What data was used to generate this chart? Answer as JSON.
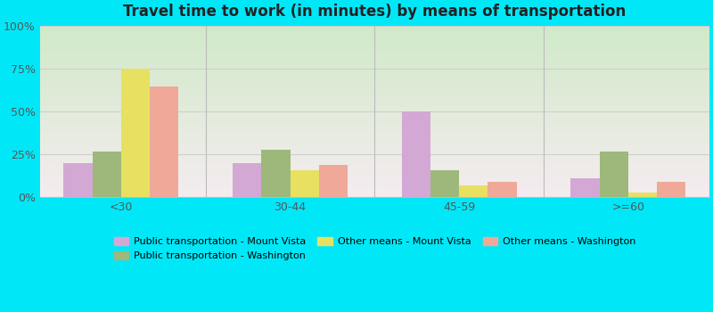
{
  "title": "Travel time to work (in minutes) by means of transportation",
  "categories": [
    "<30",
    "30-44",
    "45-59",
    ">=60"
  ],
  "series": [
    {
      "name": "Public transportation - Mount Vista",
      "color": "#d4a8d4",
      "values": [
        20,
        20,
        50,
        11
      ]
    },
    {
      "name": "Public transportation - Washington",
      "color": "#9db87a",
      "values": [
        27,
        28,
        16,
        27
      ]
    },
    {
      "name": "Other means - Mount Vista",
      "color": "#e8e060",
      "values": [
        75,
        16,
        7,
        3
      ]
    },
    {
      "name": "Other means - Washington",
      "color": "#f0a898",
      "values": [
        65,
        19,
        9,
        9
      ]
    }
  ],
  "ylim": [
    0,
    100
  ],
  "yticks": [
    0,
    25,
    50,
    75,
    100
  ],
  "ytick_labels": [
    "0%",
    "25%",
    "50%",
    "75%",
    "100%"
  ],
  "bg_colors": [
    "#d8eece",
    "#f0e8f0"
  ],
  "outer_bg": "#00e8f8",
  "grid_color": "#cccccc",
  "bar_width": 0.17,
  "group_positions": [
    0,
    1,
    2,
    3
  ],
  "title_fontsize": 12,
  "tick_fontsize": 9,
  "legend_fontsize": 8,
  "legend_order": [
    0,
    1,
    2,
    3
  ]
}
